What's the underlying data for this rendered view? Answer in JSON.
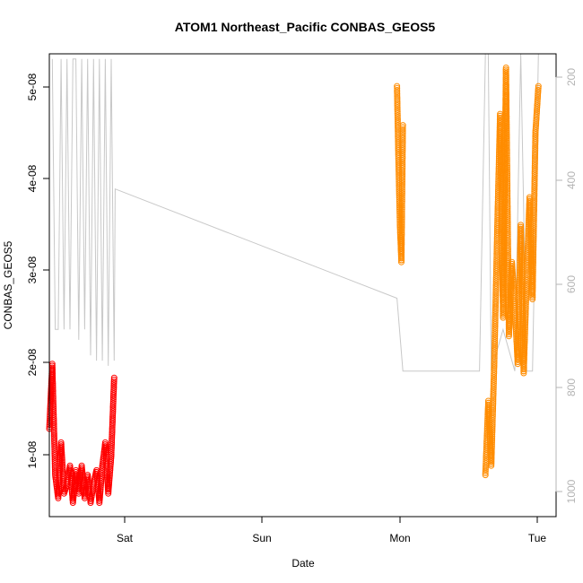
{
  "chart_data": {
    "type": "scatter",
    "title": "ATOM1 Northeast_Pacific CONBAS_GEOS5",
    "xlabel": "Date",
    "ylabel": "CONBAS_GEOS5",
    "x_ticks": [
      "Sat",
      "Sun",
      "Mon",
      "Tue"
    ],
    "y_ticks": [
      "1e-08",
      "2e-08",
      "3e-08",
      "4e-08",
      "5e-08"
    ],
    "y2_ticks": [
      "200",
      "400",
      "600",
      "800",
      "1000"
    ],
    "xlim": [
      "Fri 13:00",
      "Tue 03:00"
    ],
    "ylim": [
      3.5e-09,
      5.35e-08
    ],
    "y2lim": [
      1060,
      170
    ],
    "grid": false,
    "series": [
      {
        "color": "#ff0000",
        "x": [
          "Fri 13:00",
          "Fri 13:30",
          "Fri 14:00",
          "Fri 14:30",
          "Fri 15:00",
          "Fri 15:30",
          "Fri 16:00",
          "Fri 16:30",
          "Fri 17:00",
          "Fri 17:30",
          "Fri 18:00",
          "Fri 18:30",
          "Fri 19:00",
          "Fri 19:30",
          "Fri 20:00",
          "Fri 20:30",
          "Fri 21:00",
          "Fri 21:30",
          "Fri 22:00",
          "Fri 22:30",
          "Fri 23:00",
          "Fri 23:30",
          "Sat 00:00"
        ],
        "y": [
          1.3e-08,
          2e-08,
          8e-09,
          5.5e-09,
          1.15e-08,
          6e-09,
          7e-09,
          9e-09,
          5e-09,
          8.5e-09,
          6e-09,
          9e-09,
          5.5e-09,
          8e-09,
          5e-09,
          7e-09,
          8.5e-09,
          5e-09,
          9e-09,
          1.15e-08,
          6e-09,
          1e-08,
          1.85e-08
        ]
      },
      {
        "color": "#ff8c00",
        "x": [
          "Mon 00:00",
          "Mon 00:15",
          "Mon 00:30",
          "Mon 00:45",
          "Mon 01:00",
          "Monday 15:00",
          "Mon 15:30",
          "Mon 16:00",
          "Mon 16:30",
          "Mon 17:00",
          "Mon 17:30",
          "Mon 18:00",
          "Mon 18:30",
          "Mon 19:00",
          "Mon 19:30",
          "Mon 20:00",
          "Mon 20:30",
          "Mon 21:00",
          "Mon 21:30",
          "Mon 22:00",
          "Mon 22:30",
          "Mon 23:00",
          "Mon 23:30",
          "Tue 00:00"
        ],
        "y": [
          5e-08,
          4.2e-08,
          3.5e-08,
          3.1e-08,
          4.6e-08,
          8e-09,
          1.6e-08,
          9e-09,
          2e-08,
          3.4e-08,
          4.7e-08,
          2.5e-08,
          5.2e-08,
          2.3e-08,
          3.1e-08,
          2.6e-08,
          2e-08,
          3.5e-08,
          1.9e-08,
          2.9e-08,
          3.8e-08,
          2.7e-08,
          4.5e-08,
          5e-08
        ]
      },
      {
        "color": "#c8c8c8",
        "axis": "right",
        "x": [
          "Fri 13:30",
          "Fri 14:00",
          "Fri 14:30",
          "Fri 15:00",
          "Fri 15:30",
          "Fri 16:00",
          "Fri 16:30",
          "Fri 17:00",
          "Fri 17:30",
          "Fri 18:00",
          "Fri 18:30",
          "Fri 19:00",
          "Fri 19:30",
          "Fri 20:00",
          "Fri 20:30",
          "Fri 21:00",
          "Fri 21:30",
          "Fri 22:00",
          "Fri 22:30",
          "Fri 23:00",
          "Fri 23:30",
          "Sat 00:00",
          "Sat 00:10",
          "Mon 00:00",
          "Mon 01:00",
          "Mon 13:00",
          "Mon 14:00",
          "Mon 15:00",
          "Mon 15:30",
          "Mon 16:00",
          "Mon 18:00",
          "Mon 20:00",
          "Mon 21:00",
          "Mon 22:00",
          "Mon 23:00",
          "Tue 00:00"
        ],
        "y": [
          180,
          700,
          700,
          180,
          700,
          180,
          700,
          180,
          180,
          720,
          180,
          700,
          180,
          750,
          180,
          760,
          180,
          760,
          180,
          770,
          180,
          760,
          430,
          640,
          780,
          780,
          780,
          170,
          170,
          780,
          700,
          780,
          170,
          780,
          780,
          170
        ]
      }
    ]
  }
}
